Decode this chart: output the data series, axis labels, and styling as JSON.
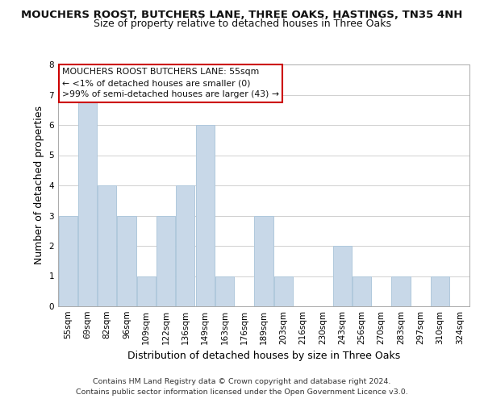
{
  "title": "MOUCHERS ROOST, BUTCHERS LANE, THREE OAKS, HASTINGS, TN35 4NH",
  "subtitle": "Size of property relative to detached houses in Three Oaks",
  "xlabel": "Distribution of detached houses by size in Three Oaks",
  "ylabel": "Number of detached properties",
  "footer_line1": "Contains HM Land Registry data © Crown copyright and database right 2024.",
  "footer_line2": "Contains public sector information licensed under the Open Government Licence v3.0.",
  "bin_labels": [
    "55sqm",
    "69sqm",
    "82sqm",
    "96sqm",
    "109sqm",
    "122sqm",
    "136sqm",
    "149sqm",
    "163sqm",
    "176sqm",
    "189sqm",
    "203sqm",
    "216sqm",
    "230sqm",
    "243sqm",
    "256sqm",
    "270sqm",
    "283sqm",
    "297sqm",
    "310sqm",
    "324sqm"
  ],
  "bar_values": [
    3,
    7,
    4,
    3,
    1,
    3,
    4,
    6,
    1,
    0,
    3,
    1,
    0,
    0,
    2,
    1,
    0,
    1,
    0,
    1,
    0
  ],
  "bar_color": "#c8d8e8",
  "bar_edge_color": "#b0c8dc",
  "ylim": [
    0,
    8
  ],
  "yticks": [
    0,
    1,
    2,
    3,
    4,
    5,
    6,
    7,
    8
  ],
  "annotation_box_title": "MOUCHERS ROOST BUTCHERS LANE: 55sqm",
  "annotation_line2": "← <1% of detached houses are smaller (0)",
  "annotation_line3": ">99% of semi-detached houses are larger (43) →",
  "annotation_box_color": "#ffffff",
  "annotation_border_color": "#cc0000",
  "background_color": "#ffffff",
  "grid_color": "#d0d0d0",
  "title_fontsize": 9.5,
  "subtitle_fontsize": 9.0,
  "axis_label_fontsize": 9.0,
  "tick_fontsize": 7.5,
  "footer_fontsize": 6.8
}
